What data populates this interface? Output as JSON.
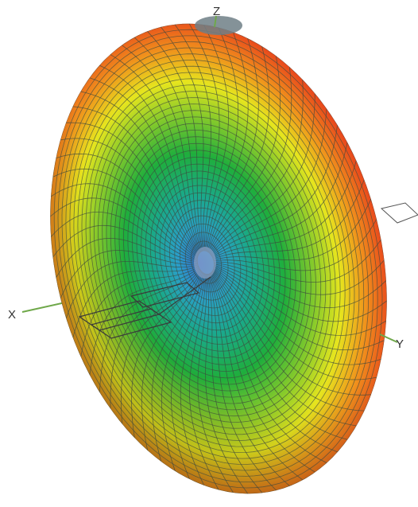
{
  "axes": {
    "x_label": "X",
    "y_label": "Y",
    "z_label": "Z"
  },
  "pattern": {
    "colors": {
      "core": "#2f6fd0",
      "inner": "#1aa9a0",
      "mid": "#1fae3c",
      "yellow": "#e6e51e",
      "orange": "#f0901c",
      "outer": "#e8431c",
      "rim_dark": "#8a3a12",
      "mesh": "#3e4a3e",
      "axis_line": "#6fa84a"
    }
  }
}
